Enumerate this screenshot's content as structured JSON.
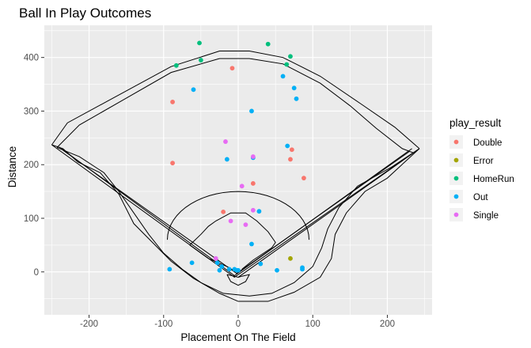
{
  "chart_data": {
    "type": "scatter",
    "title": "Ball In Play Outcomes",
    "xlabel": "Placement On The Field",
    "ylabel": "Distance",
    "xlim": [
      -260,
      260
    ],
    "ylim": [
      -80,
      460
    ],
    "x_ticks": [
      -200,
      -100,
      0,
      100,
      200
    ],
    "y_ticks": [
      0,
      100,
      200,
      300,
      400
    ],
    "grid": true,
    "legend": {
      "title": "play_result",
      "position": "right"
    },
    "series": [
      {
        "name": "Double",
        "color": "#F8766D",
        "points": [
          [
            -8,
            380
          ],
          [
            -88,
            317
          ],
          [
            -88,
            203
          ],
          [
            72,
            228
          ],
          [
            70,
            210
          ],
          [
            88,
            175
          ],
          [
            20,
            165
          ],
          [
            -20,
            112
          ]
        ]
      },
      {
        "name": "Error",
        "color": "#A3A500",
        "points": [
          [
            70,
            25
          ]
        ]
      },
      {
        "name": "HomeRun",
        "color": "#00BF7D",
        "points": [
          [
            -52,
            427
          ],
          [
            40,
            425
          ],
          [
            -83,
            385
          ],
          [
            -50,
            395
          ],
          [
            65,
            387
          ],
          [
            70,
            402
          ]
        ]
      },
      {
        "name": "Out",
        "color": "#00B0F6",
        "points": [
          [
            -60,
            340
          ],
          [
            60,
            365
          ],
          [
            75,
            343
          ],
          [
            78,
            323
          ],
          [
            18,
            300
          ],
          [
            66,
            235
          ],
          [
            20,
            213
          ],
          [
            -15,
            210
          ],
          [
            28,
            113
          ],
          [
            18,
            52
          ],
          [
            -62,
            17
          ],
          [
            -92,
            5
          ],
          [
            -28,
            17
          ],
          [
            -22,
            10
          ],
          [
            -25,
            3
          ],
          [
            -12,
            5
          ],
          [
            -5,
            5
          ],
          [
            -2,
            3
          ],
          [
            0,
            3
          ],
          [
            30,
            15
          ],
          [
            52,
            3
          ],
          [
            86,
            5
          ],
          [
            86,
            8
          ]
        ]
      },
      {
        "name": "Single",
        "color": "#E76BF3",
        "points": [
          [
            -17,
            243
          ],
          [
            20,
            215
          ],
          [
            5,
            160
          ],
          [
            20,
            115
          ],
          [
            -10,
            95
          ],
          [
            10,
            88
          ],
          [
            -30,
            25
          ]
        ]
      }
    ]
  }
}
